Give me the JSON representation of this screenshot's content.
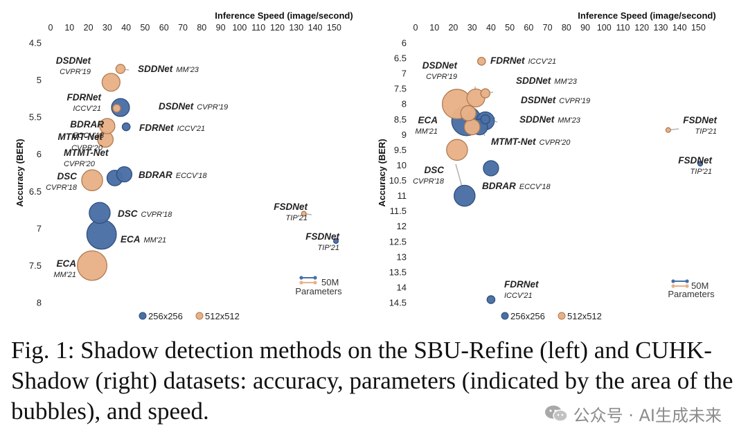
{
  "chart_data": [
    {
      "type": "scatter",
      "variant": "bubble",
      "panel": "left",
      "xlabel": "Inference Speed (image/second)",
      "x_axis_position": "top",
      "xlim": [
        0,
        155
      ],
      "xticks": [
        0,
        10,
        20,
        30,
        40,
        50,
        60,
        70,
        80,
        90,
        100,
        110,
        120,
        130,
        140,
        150
      ],
      "ylabel": "Accuracy (BER)",
      "y_reversed": true,
      "ylim": [
        4.5,
        8
      ],
      "yticks": [
        "4.5",
        "5",
        "5.5",
        "6",
        "6.5",
        "7",
        "7.5",
        "8"
      ],
      "legend": {
        "items": [
          {
            "label": "256x256",
            "color": "#4a6fa5"
          },
          {
            "label": "512x512",
            "color": "#e8b288"
          }
        ],
        "size_key_value": "50M",
        "size_key_label": "Parameters"
      },
      "series": [
        {
          "name": "256x256",
          "color": "#4a6fa5",
          "points": [
            {
              "method": "DSDNet",
              "venue": "CVPR'19",
              "x": 37,
              "y": 5.37,
              "params_m": 58
            },
            {
              "method": "FDRNet",
              "venue": "ICCV'21",
              "x": 40,
              "y": 5.63,
              "params_m": 11
            },
            {
              "method": "BDRAR",
              "venue": "ECCV'18",
              "x": 39,
              "y": 6.27,
              "params_m": 42
            },
            {
              "method": "MTMT-Net",
              "venue": "CVPR'20",
              "x": 34,
              "y": 6.32,
              "params_m": 44
            },
            {
              "method": "DSC",
              "venue": "CVPR'18",
              "x": 26,
              "y": 6.79,
              "params_m": 79
            },
            {
              "method": "ECA",
              "venue": "MM'21",
              "x": 27,
              "y": 7.08,
              "params_m": 157
            },
            {
              "method": "FSDNet",
              "venue": "TIP'21",
              "x": 151,
              "y": 7.17,
              "params_m": 4
            }
          ]
        },
        {
          "name": "512x512",
          "color": "#e8b288",
          "points": [
            {
              "method": "DSDNet",
              "venue": "CVPR'19",
              "x": 32,
              "y": 5.03,
              "params_m": 58
            },
            {
              "method": "SDDNet",
              "venue": "MM'23",
              "x": 37,
              "y": 4.85,
              "params_m": 15
            },
            {
              "method": "FDRNet",
              "venue": "ICCV'21",
              "x": 35,
              "y": 5.38,
              "params_m": 11
            },
            {
              "method": "BDRAR",
              "venue": "ECCV'18",
              "x": 30,
              "y": 5.62,
              "params_m": 42
            },
            {
              "method": "MTMT-Net",
              "venue": "CVPR'20",
              "x": 29,
              "y": 5.8,
              "params_m": 44
            },
            {
              "method": "DSC",
              "venue": "CVPR'18",
              "x": 22,
              "y": 6.35,
              "params_m": 79
            },
            {
              "method": "FSDNet",
              "venue": "TIP'21",
              "x": 134,
              "y": 6.8,
              "params_m": 4
            },
            {
              "method": "ECA",
              "venue": "MM'21",
              "x": 22,
              "y": 7.5,
              "params_m": 157
            }
          ]
        }
      ]
    },
    {
      "type": "scatter",
      "variant": "bubble",
      "panel": "right",
      "xlabel": "Inference Speed (image/second)",
      "x_axis_position": "top",
      "xlim": [
        0,
        155
      ],
      "xticks": [
        0,
        10,
        20,
        30,
        40,
        50,
        60,
        70,
        80,
        90,
        100,
        110,
        120,
        130,
        140,
        150
      ],
      "ylabel": "Accuracy (BER)",
      "y_reversed": true,
      "ylim": [
        6,
        14.5
      ],
      "yticks": [
        "6",
        "6.5",
        "7",
        "7.5",
        "8",
        "8.5",
        "9",
        "9.5",
        "10",
        "10.5",
        "11",
        "11.5",
        "12",
        "12.5",
        "13",
        "13.5",
        "14",
        "14.5"
      ],
      "legend": {
        "items": [
          {
            "label": "256x256",
            "color": "#4a6fa5"
          },
          {
            "label": "512x512",
            "color": "#e8b288"
          }
        ],
        "size_key_value": "50M",
        "size_key_label": "Parameters"
      },
      "series": [
        {
          "name": "256x256",
          "color": "#4a6fa5",
          "points": [
            {
              "method": "ECA",
              "venue": "MM'21",
              "x": 27,
              "y": 8.55,
              "params_m": 157
            },
            {
              "method": "MTMT-Net",
              "venue": "CVPR'20",
              "x": 34,
              "y": 8.75,
              "params_m": 44
            },
            {
              "method": "DSDNet",
              "venue": "CVPR'19",
              "x": 37,
              "y": 8.55,
              "params_m": 58
            },
            {
              "method": "SDDNet",
              "venue": "MM'23",
              "x": 37,
              "y": 8.5,
              "params_m": 15
            },
            {
              "method": "BDRAR",
              "venue": "ECCV'18",
              "x": 40,
              "y": 10.1,
              "params_m": 42
            },
            {
              "method": "DSC",
              "venue": "CVPR'18",
              "x": 26,
              "y": 11.0,
              "params_m": 79
            },
            {
              "method": "FSDNet",
              "venue": "TIP'21",
              "x": 151,
              "y": 9.95,
              "params_m": 4
            },
            {
              "method": "FDRNet",
              "venue": "ICCV'21",
              "x": 40,
              "y": 14.4,
              "params_m": 11
            }
          ]
        },
        {
          "name": "512x512",
          "color": "#e8b288",
          "points": [
            {
              "method": "FDRNet",
              "venue": "ICCV'21",
              "x": 35,
              "y": 6.6,
              "params_m": 11
            },
            {
              "method": "SDDNet",
              "venue": "MM'23",
              "x": 37,
              "y": 7.65,
              "params_m": 15
            },
            {
              "method": "DSDNet",
              "venue": "CVPR'19",
              "x": 32,
              "y": 7.8,
              "params_m": 58
            },
            {
              "method": "ECA",
              "venue": "MM'21",
              "x": 22,
              "y": 8.0,
              "params_m": 157
            },
            {
              "method": "BDRAR",
              "venue": "ECCV'18",
              "x": 28,
              "y": 8.3,
              "params_m": 42
            },
            {
              "method": "MTMT-Net",
              "venue": "CVPR'20",
              "x": 30,
              "y": 8.75,
              "params_m": 44
            },
            {
              "method": "DSC",
              "venue": "CVPR'18",
              "x": 22,
              "y": 9.5,
              "params_m": 79
            },
            {
              "method": "FSDNet",
              "venue": "TIP'21",
              "x": 134,
              "y": 8.85,
              "params_m": 4
            }
          ]
        }
      ]
    }
  ],
  "caption": "Fig. 1: Shadow detection methods on the SBU-Refine (left) and CUHK-Shadow (right) datasets: accuracy, parameters (indicated by the area of the bubbles), and speed.",
  "watermark": "公众号 · AI生成未来"
}
